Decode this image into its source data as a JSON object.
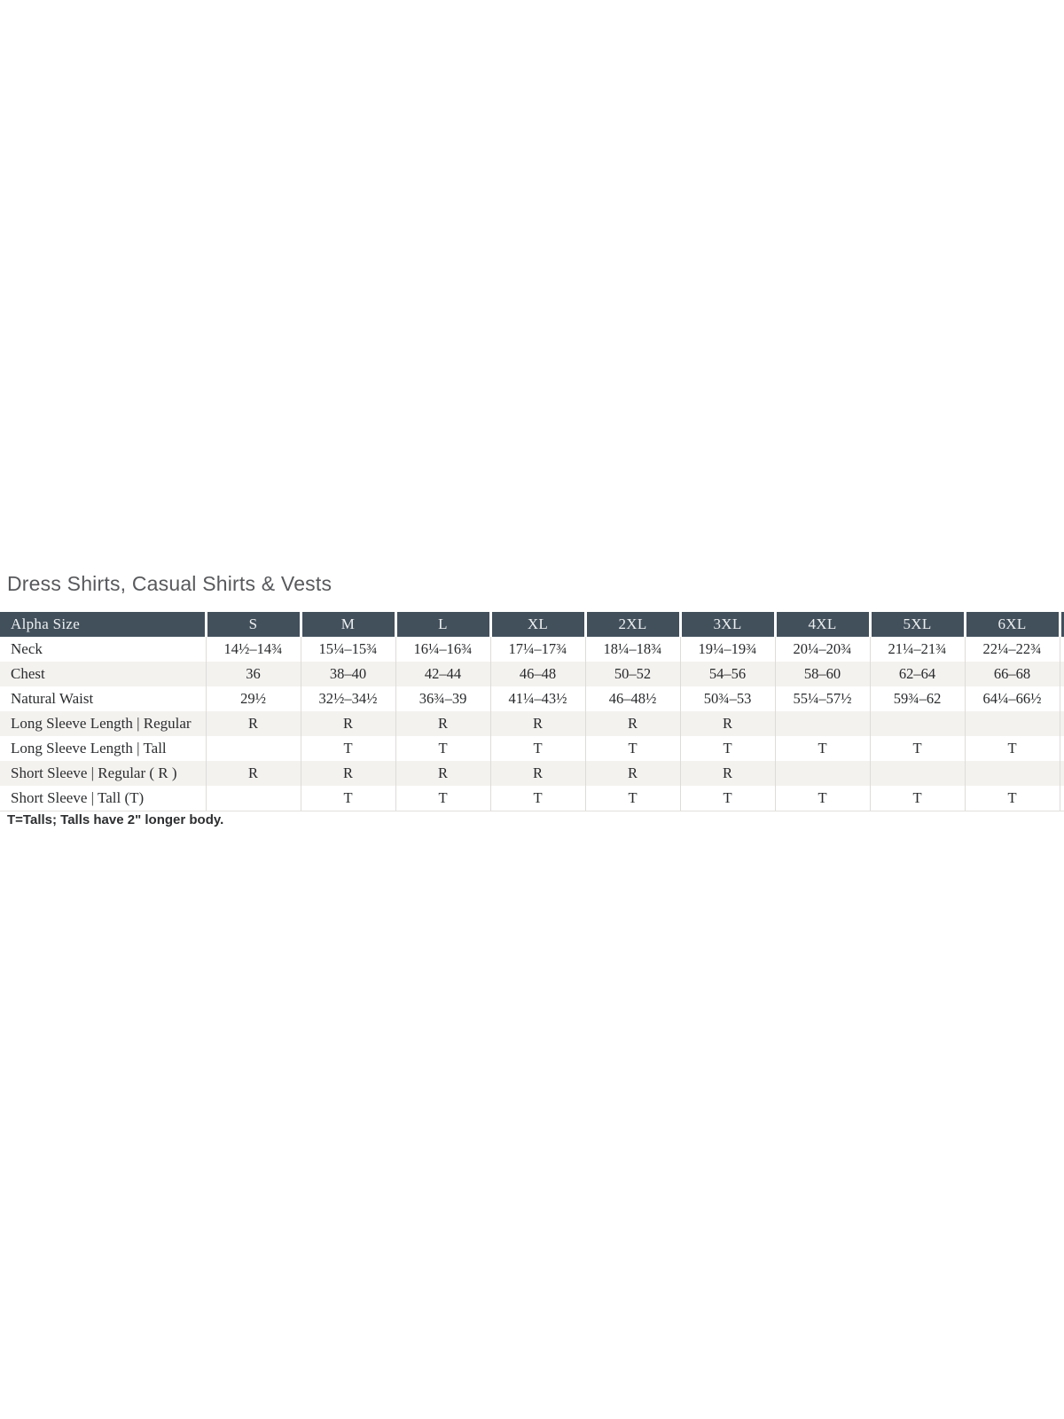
{
  "page": {
    "title": "Dress Shirts, Casual Shirts & Vests",
    "footnote": "T=Talls; Talls have 2\" longer body."
  },
  "table": {
    "header": {
      "label": "Alpha Size",
      "columns": [
        "S",
        "M",
        "L",
        "XL",
        "2XL",
        "3XL",
        "4XL",
        "5XL",
        "6XL"
      ]
    },
    "rows": [
      {
        "label": "Neck",
        "values": [
          "14½–14¾",
          "15¼–15¾",
          "16¼–16¾",
          "17¼–17¾",
          "18¼–18¾",
          "19¼–19¾",
          "20¼–20¾",
          "21¼–21¾",
          "22¼–22¾"
        ]
      },
      {
        "label": "Chest",
        "values": [
          "36",
          "38–40",
          "42–44",
          "46–48",
          "50–52",
          "54–56",
          "58–60",
          "62–64",
          "66–68"
        ]
      },
      {
        "label": "Natural Waist",
        "values": [
          "29½",
          "32½–34½",
          "36¾–39",
          "41¼–43½",
          "46–48½",
          "50¾–53",
          "55¼–57½",
          "59¾–62",
          "64¼–66½"
        ]
      },
      {
        "label": "Long Sleeve Length | Regular",
        "values": [
          "R",
          "R",
          "R",
          "R",
          "R",
          "R",
          "",
          "",
          ""
        ]
      },
      {
        "label": "Long Sleeve Length | Tall",
        "values": [
          "",
          "T",
          "T",
          "T",
          "T",
          "T",
          "T",
          "T",
          "T"
        ]
      },
      {
        "label": "Short Sleeve | Regular ( R )",
        "values": [
          "R",
          "R",
          "R",
          "R",
          "R",
          "R",
          "",
          "",
          ""
        ]
      },
      {
        "label": "Short Sleeve | Tall (T)",
        "values": [
          "",
          "T",
          "T",
          "T",
          "T",
          "T",
          "T",
          "T",
          "T"
        ]
      }
    ]
  },
  "colors": {
    "header_bg": "#42505c",
    "header_text": "#eef0f1",
    "row_alt_bg": "#f4f2ef",
    "body_text": "#27292b",
    "title_text": "#58595c",
    "divider": "#dedcd8"
  }
}
